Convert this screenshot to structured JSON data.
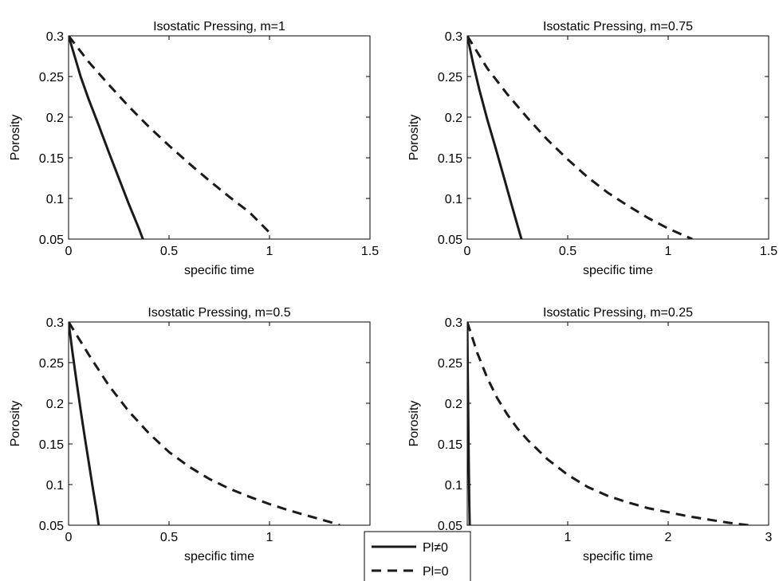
{
  "chart_data": [
    {
      "type": "line",
      "title": "Isostatic Pressing, m=1",
      "xlabel": "specific time",
      "ylabel": "Porosity",
      "xlim": [
        0,
        1.5
      ],
      "ylim": [
        0.05,
        0.3
      ],
      "xticks": [
        "0",
        "0.5",
        "1",
        "1.5"
      ],
      "yticks": [
        "0.05",
        "0.1",
        "0.15",
        "0.2",
        "0.25",
        "0.3"
      ],
      "series": [
        {
          "name": "Pl≠0",
          "style": "solid",
          "x": [
            0,
            0.03,
            0.06,
            0.1,
            0.15,
            0.2,
            0.25,
            0.3,
            0.35,
            0.37
          ],
          "y": [
            0.3,
            0.275,
            0.25,
            0.222,
            0.19,
            0.157,
            0.125,
            0.093,
            0.063,
            0.05
          ]
        },
        {
          "name": "Pl=0",
          "style": "dashed",
          "x": [
            0,
            0.1,
            0.2,
            0.3,
            0.4,
            0.5,
            0.6,
            0.7,
            0.8,
            0.9,
            1.0,
            1.02
          ],
          "y": [
            0.3,
            0.268,
            0.24,
            0.213,
            0.188,
            0.165,
            0.143,
            0.122,
            0.102,
            0.083,
            0.058,
            0.055
          ]
        }
      ]
    },
    {
      "type": "line",
      "title": "Isostatic Pressing, m=0.75",
      "xlabel": "specific time",
      "ylabel": "Porosity",
      "xlim": [
        0,
        1.5
      ],
      "ylim": [
        0.05,
        0.3
      ],
      "xticks": [
        "0",
        "0.5",
        "1",
        "1.5"
      ],
      "yticks": [
        "0.05",
        "0.1",
        "0.15",
        "0.2",
        "0.25",
        "0.3"
      ],
      "series": [
        {
          "name": "Pl≠0",
          "style": "solid",
          "x": [
            0,
            0.03,
            0.06,
            0.1,
            0.14,
            0.18,
            0.22,
            0.25,
            0.27
          ],
          "y": [
            0.3,
            0.265,
            0.234,
            0.197,
            0.163,
            0.128,
            0.093,
            0.067,
            0.05
          ]
        },
        {
          "name": "Pl=0",
          "style": "dashed",
          "x": [
            0,
            0.1,
            0.2,
            0.3,
            0.4,
            0.5,
            0.6,
            0.7,
            0.8,
            0.9,
            1.0,
            1.12
          ],
          "y": [
            0.3,
            0.26,
            0.228,
            0.199,
            0.172,
            0.148,
            0.126,
            0.107,
            0.091,
            0.076,
            0.063,
            0.05
          ]
        }
      ]
    },
    {
      "type": "line",
      "title": "Isostatic Pressing, m=0.5",
      "xlabel": "specific time",
      "ylabel": "Porosity",
      "xlim": [
        0,
        1.5
      ],
      "ylim": [
        0.05,
        0.3
      ],
      "xticks": [
        "0",
        "0.5",
        "1",
        ""
      ],
      "yticks": [
        "0.05",
        "0.1",
        "0.15",
        "0.2",
        "0.25",
        "0.3"
      ],
      "series": [
        {
          "name": "Pl≠0",
          "style": "solid",
          "x": [
            0,
            0.02,
            0.04,
            0.06,
            0.08,
            0.1,
            0.12,
            0.14,
            0.15
          ],
          "y": [
            0.3,
            0.262,
            0.226,
            0.192,
            0.159,
            0.128,
            0.097,
            0.067,
            0.05
          ]
        },
        {
          "name": "Pl=0",
          "style": "dashed",
          "x": [
            0,
            0.1,
            0.2,
            0.3,
            0.4,
            0.5,
            0.6,
            0.7,
            0.8,
            0.9,
            1.0,
            1.1,
            1.2,
            1.3,
            1.35
          ],
          "y": [
            0.3,
            0.26,
            0.222,
            0.19,
            0.163,
            0.14,
            0.122,
            0.107,
            0.095,
            0.085,
            0.076,
            0.068,
            0.061,
            0.054,
            0.05
          ]
        }
      ]
    },
    {
      "type": "line",
      "title": "Isostatic Pressing, m=0.25",
      "xlabel": "specific time",
      "ylabel": "Porosity",
      "xlim": [
        0,
        3
      ],
      "ylim": [
        0.05,
        0.3
      ],
      "xticks": [
        "0",
        "1",
        "2",
        "3"
      ],
      "yticks": [
        "0.05",
        "0.1",
        "0.15",
        "0.2",
        "0.25",
        "0.3"
      ],
      "series": [
        {
          "name": "Pl≠0",
          "style": "solid",
          "x": [
            0,
            0.005,
            0.01,
            0.015,
            0.02,
            0.025
          ],
          "y": [
            0.3,
            0.24,
            0.18,
            0.125,
            0.08,
            0.05
          ]
        },
        {
          "name": "Pl=0",
          "style": "dashed",
          "x": [
            0,
            0.1,
            0.2,
            0.3,
            0.4,
            0.5,
            0.6,
            0.8,
            1.0,
            1.2,
            1.4,
            1.6,
            1.8,
            2.0,
            2.2,
            2.4,
            2.6,
            2.8
          ],
          "y": [
            0.3,
            0.262,
            0.231,
            0.206,
            0.186,
            0.169,
            0.155,
            0.131,
            0.112,
            0.097,
            0.086,
            0.078,
            0.071,
            0.066,
            0.061,
            0.057,
            0.053,
            0.05
          ]
        }
      ]
    }
  ],
  "legend": {
    "entries": [
      {
        "label": "Pl≠0",
        "style": "solid"
      },
      {
        "label": "Pl=0",
        "style": "dashed"
      }
    ]
  }
}
